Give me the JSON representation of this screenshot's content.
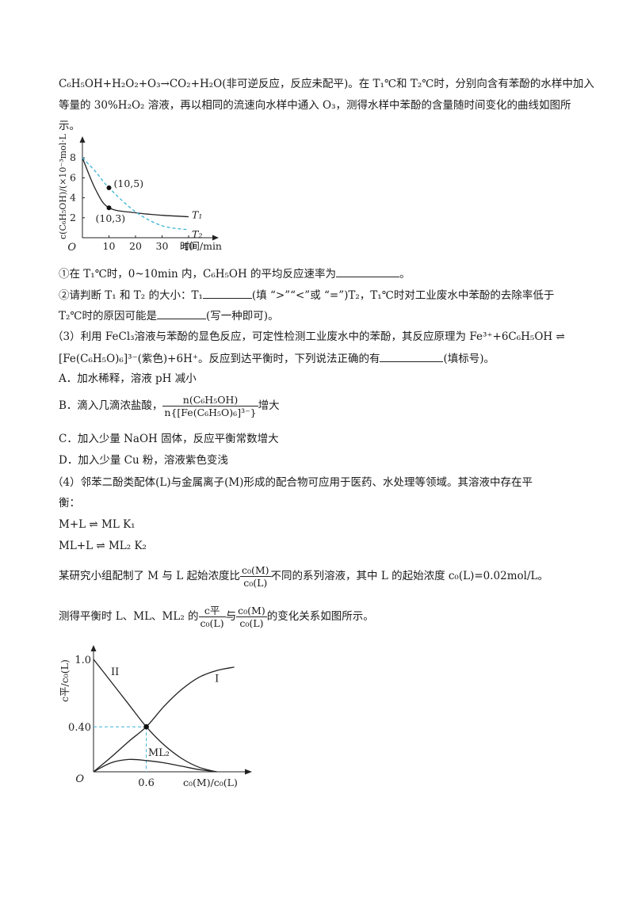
{
  "intro": {
    "line1": "C₆H₅OH+H₂O₂+O₃→CO₂+H₂O(非可逆反应，反应未配平)。在 T₁℃和 T₂℃时，分别向含有苯酚的水样中加入",
    "line2": "等量的 30%H₂O₂ 溶液，再以相同的流速向水样中通入 O₃，测得水样中苯酚的含量随时间变化的曲线如图所",
    "line3": "示。"
  },
  "q1": {
    "prefix": "①在 T₁℃时，0~10min 内，C₆H₅OH 的平均反应速率为",
    "suffix": "。"
  },
  "q2": {
    "a": "②请判断 T₁ 和 T₂ 的大小：T₁",
    "b": "(填 “>”“<”或 “=”)T₂，T₁℃时对工业废水中苯酚的去除率低于",
    "c": "T₂℃时的原因可能是",
    "d": "(写一种即可)。"
  },
  "q3": {
    "line1": "（3）利用 FeCl₃溶液与苯酚的显色反应，可定性检测工业废水中的苯酚，其反应原理为 Fe³⁺+6C₆H₅OH ⇌",
    "line2a": "[Fe(C₆H₅O)₆]³⁻(紫色)+6H⁺。反应到达平衡时，下列说法正确的有",
    "line2b": "(填标号)。",
    "optA": "A．加水稀释，溶液 pH 减小",
    "optB_prefix": "B．滴入几滴浓盐酸，",
    "optB_num": "n(C₆H₅OH)",
    "optB_den": "n{[Fe(C₆H₅O)₆]³⁻}",
    "optB_suffix": "增大",
    "optC": "C．加入少量 NaOH 固体，反应平衡常数增大",
    "optD": "D．加入少量 Cu 粉，溶液紫色变浅"
  },
  "q4": {
    "line1": "（4）邻苯二酚类配体(L)与金属离子(M)形成的配合物可应用于医药、水处理等领域。其溶液中存在平",
    "line2": "衡：",
    "eq1": "M+L ⇌ ML  K₁",
    "eq2": "ML+L ⇌ ML₂  K₂",
    "study_prefix": "某研究小组配制了 M 与 L 起始浓度比",
    "frac1_num": "c₀(M)",
    "frac1_den": "c₀(L)",
    "study_suffix": "不同的系列溶液，其中 L 的起始浓度 c₀(L)=0.02mol/L。",
    "measure_prefix": "测得平衡时 L、ML、ML₂ 的",
    "frac2_num": "c平",
    "frac2_den": "c₀(L)",
    "measure_mid": "与",
    "frac3_num": "c₀(M)",
    "frac3_den": "c₀(L)",
    "measure_suffix": "的变化关系如图所示。"
  },
  "chart_data": [
    {
      "type": "line",
      "ylabel": "c(C₆H₅OH)/(×10⁻³mol·L⁻¹)",
      "xlabel": "时间/min",
      "origin_label": "O",
      "x_ticks": [
        10,
        20,
        30,
        40
      ],
      "y_ticks": [
        2,
        4,
        6,
        8
      ],
      "xlim": [
        0,
        50
      ],
      "ylim": [
        0,
        9.5
      ],
      "series": [
        {
          "name": "T₁",
          "style": "solid",
          "color": "#222222",
          "x": [
            0,
            5,
            10,
            20,
            30,
            40
          ],
          "y": [
            8,
            4.8,
            3,
            2.5,
            2.25,
            2.1
          ]
        },
        {
          "name": "T₂",
          "style": "dashed",
          "color": "#3bb3d6",
          "x": [
            0,
            5,
            10,
            20,
            30,
            40
          ],
          "y": [
            8,
            6.6,
            5,
            2.6,
            1.2,
            0.8
          ]
        }
      ],
      "points": [
        {
          "label": "(10,5)",
          "x": 10,
          "y": 5
        },
        {
          "label": "(10,3)",
          "x": 10,
          "y": 3
        }
      ]
    },
    {
      "type": "line",
      "ylabel": "c平/c₀(L)",
      "xlabel": "c₀(M)/c₀(L)",
      "origin_label": "O",
      "x_ticks": [
        0.6
      ],
      "y_ticks": [
        0.4,
        1.0
      ],
      "y_tick_labels": [
        "0.40",
        "1.0"
      ],
      "xlim": [
        0,
        1.7
      ],
      "ylim": [
        0,
        1.15
      ],
      "series": [
        {
          "name": "I",
          "style": "solid",
          "color": "#222222",
          "x": [
            0,
            0.2,
            0.4,
            0.6,
            0.8,
            1.0,
            1.2,
            1.4,
            1.6
          ],
          "y": [
            0,
            0.13,
            0.27,
            0.4,
            0.58,
            0.73,
            0.84,
            0.9,
            0.93
          ]
        },
        {
          "name": "II",
          "style": "solid",
          "color": "#222222",
          "x": [
            0,
            0.2,
            0.4,
            0.6,
            0.8,
            1.0,
            1.2,
            1.4
          ],
          "y": [
            1.0,
            0.8,
            0.6,
            0.4,
            0.24,
            0.12,
            0.04,
            0.0
          ]
        },
        {
          "name": "ML₂",
          "style": "solid",
          "color": "#222222",
          "x": [
            0,
            0.2,
            0.4,
            0.6,
            0.8,
            1.0,
            1.2,
            1.4
          ],
          "y": [
            0,
            0.08,
            0.11,
            0.1,
            0.08,
            0.05,
            0.02,
            0.0
          ]
        }
      ],
      "point": {
        "x": 0.6,
        "y": 0.4
      }
    }
  ]
}
